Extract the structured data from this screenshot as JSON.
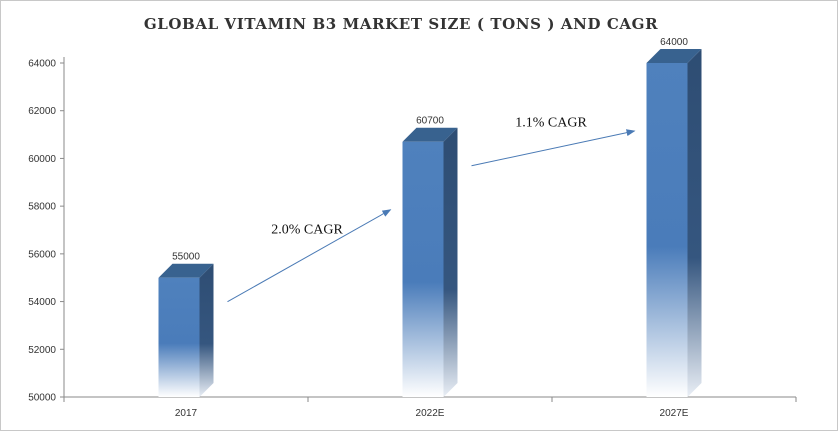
{
  "chart_data": {
    "type": "bar",
    "title": "GLOBAL VITAMIN  B3 MARKET  SIZE  ( TONS ) AND CAGR",
    "categories": [
      "2017",
      "2022E",
      "2027E"
    ],
    "values": [
      55000,
      60700,
      64000
    ],
    "data_labels": [
      "55000",
      "60700",
      "64000"
    ],
    "ylim": [
      50000,
      64000
    ],
    "yticks": [
      "50000",
      "52000",
      "54000",
      "56000",
      "58000",
      "60000",
      "62000",
      "64000"
    ],
    "xlabel": "",
    "ylabel": "",
    "grid": false,
    "legend": "none",
    "annotations": [
      {
        "text": "2.0% CAGR",
        "from": "2017",
        "to": "2022E"
      },
      {
        "text": "1.1% CAGR",
        "from": "2022E",
        "to": "2027E"
      }
    ],
    "colors": {
      "bar_front": "#4f81bd",
      "bar_side": "#2e4d73",
      "bar_top": "#38628f",
      "arrow": "#4a7ab5",
      "axis": "#8a8a8a"
    }
  }
}
